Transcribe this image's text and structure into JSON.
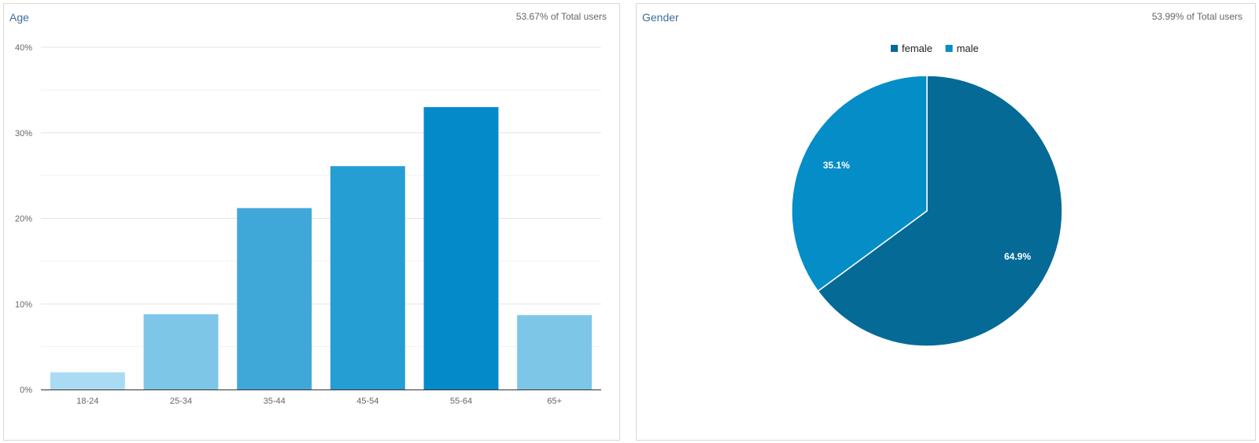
{
  "panels": {
    "age": {
      "title": "Age",
      "meta": "53.67% of Total users"
    },
    "gender": {
      "title": "Gender",
      "meta": "53.99% of Total users"
    }
  },
  "chart_data": [
    {
      "type": "bar",
      "title": "Age",
      "categories": [
        "18-24",
        "25-34",
        "35-44",
        "45-54",
        "55-64",
        "65+"
      ],
      "values": [
        2.0,
        8.8,
        21.2,
        26.1,
        33.0,
        8.7
      ],
      "bar_colors": [
        "#a9dcf4",
        "#7ec6e8",
        "#40a8d9",
        "#259ed4",
        "#058ac9",
        "#7ec6e8"
      ],
      "y_ticks": [
        "0%",
        "10%",
        "20%",
        "30%",
        "40%"
      ],
      "ylim": [
        0,
        40
      ],
      "grid": true
    },
    {
      "type": "pie",
      "title": "Gender",
      "slices": [
        {
          "name": "female",
          "value": 64.9,
          "label": "64.9%",
          "color": "#066a97"
        },
        {
          "name": "male",
          "value": 35.1,
          "label": "35.1%",
          "color": "#058dc7"
        }
      ],
      "legend_placement": "top"
    }
  ]
}
